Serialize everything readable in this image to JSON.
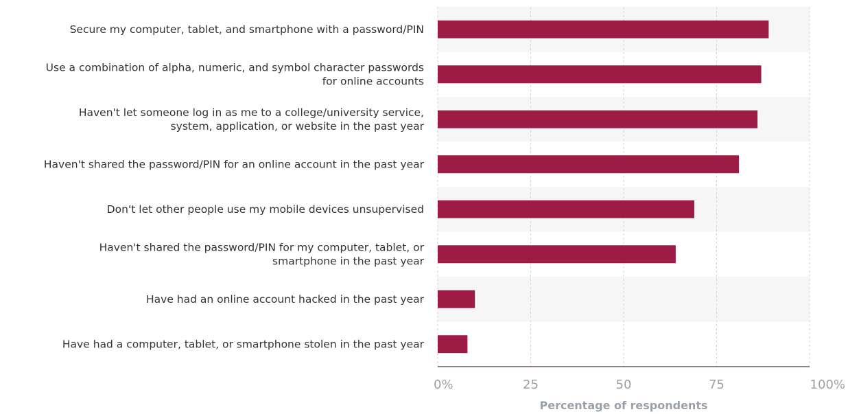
{
  "chart_data": {
    "type": "bar",
    "orientation": "horizontal",
    "categories": [
      "Secure my computer, tablet, and smartphone with a password/PIN",
      "Use a combination of alpha, numeric, and symbol character passwords for online accounts",
      "Haven't let someone log in as me to a college/university service, system, application, or website in the past year",
      "Haven't shared the password/PIN for an online account in the past year",
      "Don't let other people use my mobile devices unsupervised",
      "Haven't shared the password/PIN for my computer, tablet, or smartphone in the past year",
      "Have had an online account hacked in the past year",
      "Have had a computer, tablet, or smartphone stolen in the past year"
    ],
    "category_lines": [
      [
        "Secure my computer, tablet, and smartphone with a password/PIN"
      ],
      [
        "Use a combination of alpha, numeric, and symbol character passwords",
        "for online accounts"
      ],
      [
        "Haven't let someone log in as me to a college/university service,",
        "system, application, or website in the past year"
      ],
      [
        "Haven't shared the password/PIN for an online account in the past year"
      ],
      [
        "Don't let other people use my mobile devices unsupervised"
      ],
      [
        "Haven't shared the password/PIN for my computer, tablet, or",
        "smartphone in the past year"
      ],
      [
        "Have had an online account hacked in the past year"
      ],
      [
        "Have had a computer, tablet, or smartphone stolen in the past year"
      ]
    ],
    "values": [
      89,
      87,
      86,
      81,
      69,
      64,
      10,
      8
    ],
    "xlim": [
      0,
      100
    ],
    "xticks": [
      0,
      25,
      50,
      75,
      100
    ],
    "xtick_labels": [
      "0%",
      "25",
      "50",
      "75",
      "100%"
    ],
    "xlabel": "Percentage of respondents",
    "ylabel": "",
    "title": "",
    "grid": true,
    "colors": {
      "bar": "#9d1c46",
      "band": "#f5f6f5",
      "grid": "#d4d4d4",
      "axis_text": "#9aa0a8",
      "label_text": "#333333"
    }
  }
}
